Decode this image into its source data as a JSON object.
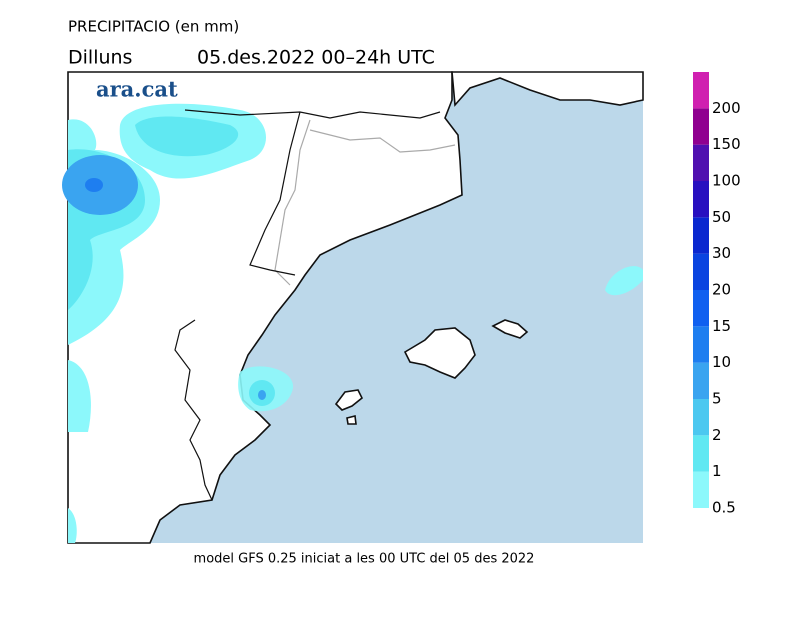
{
  "header": {
    "title": "PRECIPITACIO (en mm)",
    "day": "Dilluns",
    "period": "05.des.2022 00–24h UTC"
  },
  "logo": "ara.cat",
  "footer": "model GFS 0.25 iniciat a les 00 UTC del 05 des 2022",
  "legend": {
    "levels": [
      {
        "value": 0.5,
        "color": "#8cf8fb"
      },
      {
        "value": 1,
        "color": "#60e8f2"
      },
      {
        "value": 2,
        "color": "#4cc8f0"
      },
      {
        "value": 5,
        "color": "#3aa4f0"
      },
      {
        "value": 10,
        "color": "#1e7ef0"
      },
      {
        "value": 15,
        "color": "#1060f0"
      },
      {
        "value": 20,
        "color": "#0a44e0"
      },
      {
        "value": 30,
        "color": "#0a28d0"
      },
      {
        "value": 50,
        "color": "#2810c0"
      },
      {
        "value": 100,
        "color": "#5010b0"
      },
      {
        "value": 150,
        "color": "#900090"
      },
      {
        "value": 200,
        "color": "#d020b0"
      }
    ]
  }
}
